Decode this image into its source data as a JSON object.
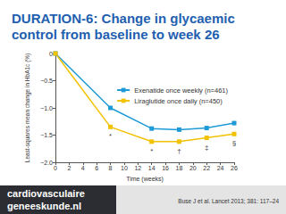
{
  "chart_data": {
    "type": "line",
    "title": "DURATION-6: Change in glycaemic control from baseline to week 26",
    "x_label": "Time (weeks)",
    "y_label": "Least-squares mean change in HbA1c (%)",
    "series": [
      {
        "name": "Exenatide once weekly (n=461)",
        "color": "#1e9bd7",
        "marker": "square",
        "x": [
          0,
          8,
          14,
          18,
          22,
          26
        ],
        "values": [
          0,
          -1.0,
          -1.38,
          -1.4,
          -1.37,
          -1.28
        ]
      },
      {
        "name": "Liraglutide once daily (n=450)",
        "color": "#f2c200",
        "marker": "square",
        "x": [
          0,
          8,
          14,
          18,
          22,
          26
        ],
        "values": [
          0,
          -1.35,
          -1.62,
          -1.62,
          -1.55,
          -1.48
        ]
      }
    ],
    "annotations": [
      {
        "series": "Liraglutide once daily (n=450)",
        "x": 8,
        "text": "*"
      },
      {
        "series": "Liraglutide once daily (n=450)",
        "x": 14,
        "text": "*"
      },
      {
        "series": "Liraglutide once daily (n=450)",
        "x": 18,
        "text": "†"
      },
      {
        "series": "Liraglutide once daily (n=450)",
        "x": 22,
        "text": "‡"
      },
      {
        "series": "Liraglutide once daily (n=450)",
        "x": 26,
        "text": "§"
      }
    ],
    "xlim": [
      0,
      26
    ],
    "xticks": [
      0,
      2,
      4,
      6,
      8,
      10,
      12,
      14,
      16,
      18,
      20,
      22,
      24,
      26
    ],
    "ylim": [
      -2.0,
      0
    ],
    "yticks": [
      {
        "value": -2.0,
        "label": "−2.0"
      },
      {
        "value": -1.5,
        "label": "−1.5"
      },
      {
        "value": -1.0,
        "label": "−1.0"
      },
      {
        "value": -0.5,
        "label": "−0.5"
      },
      0
    ],
    "grid": false,
    "legend": "upper right",
    "logo": [
      "cardiovasculaire",
      "geneeskunde.nl"
    ],
    "source": "Buse J et al. Lancet 2013; 381: 117–24"
  }
}
